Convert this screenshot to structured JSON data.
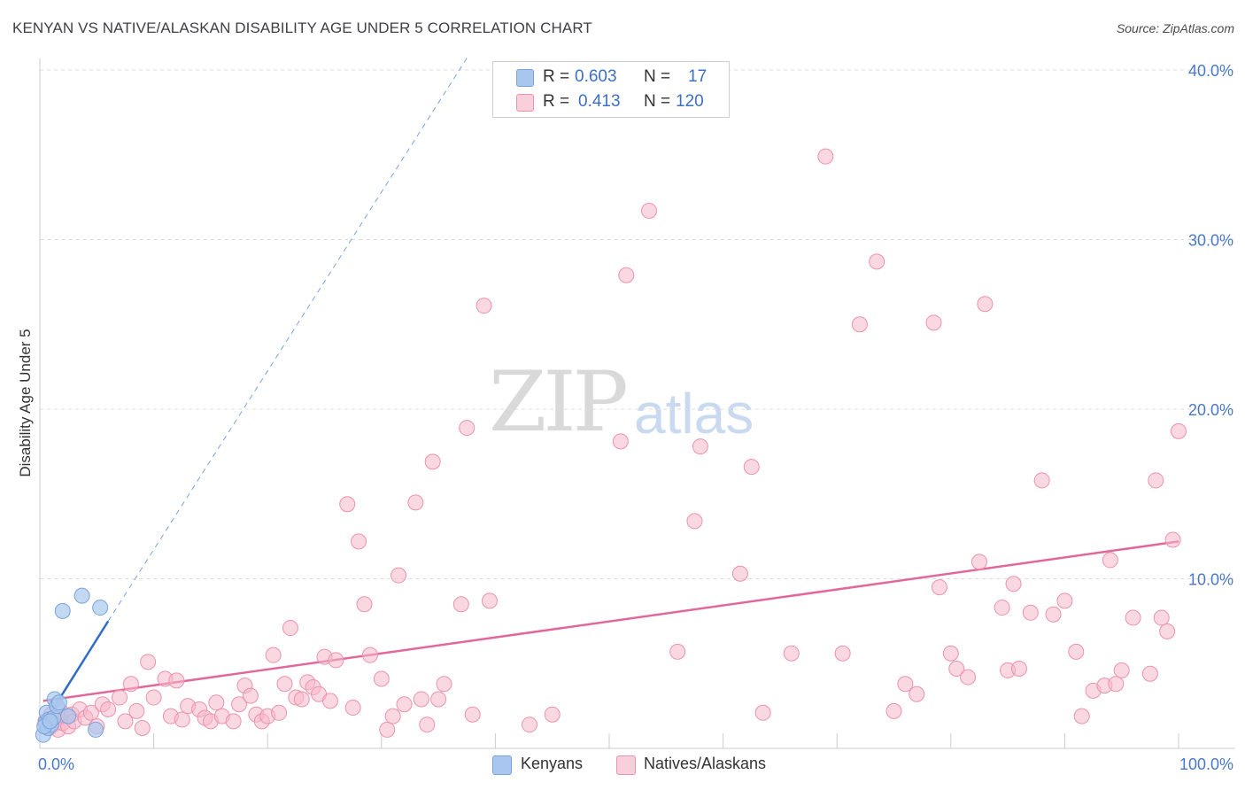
{
  "header": {
    "title": "KENYAN VS NATIVE/ALASKAN DISABILITY AGE UNDER 5 CORRELATION CHART",
    "source": "Source: ZipAtlas.com"
  },
  "watermark": {
    "zip": "ZIP",
    "atlas": "atlas"
  },
  "legend": {
    "rows": [
      {
        "r_label": "R =",
        "r_value": "0.603",
        "n_label": "N =",
        "n_value": "17",
        "color": "#a9c7ee"
      },
      {
        "r_label": "R =",
        "r_value": "0.413",
        "n_label": "N =",
        "n_value": "120",
        "color": "#f6b8cb"
      }
    ]
  },
  "bottom_legend": [
    {
      "label": "Kenyans",
      "color": "#a9c7ee"
    },
    {
      "label": "Natives/Alaskans",
      "color": "#f6b8cb"
    }
  ],
  "colors": {
    "blue_fill": "#a9c7ee",
    "blue_stroke": "#7aa3dc",
    "blue_line": "#2f6cc8",
    "pink_fill": "#f6b8cb",
    "pink_stroke": "#ec92ae",
    "pink_line": "#e2679a",
    "axis_text": "#4a78c9",
    "grid": "#dddddd"
  },
  "chart_data": {
    "type": "scatter",
    "title": "KENYAN VS NATIVE/ALASKAN DISABILITY AGE UNDER 5 CORRELATION CHART",
    "xlabel": "",
    "ylabel": "Disability Age Under 5",
    "xlim": [
      0,
      100
    ],
    "ylim": [
      0,
      42
    ],
    "x_tick_labels": [
      "0.0%",
      "100.0%"
    ],
    "y_ticks": [
      10,
      20,
      30,
      40
    ],
    "y_tick_labels": [
      "10.0%",
      "20.0%",
      "30.0%",
      "40.0%"
    ],
    "series": [
      {
        "name": "Kenyans",
        "r": 0.603,
        "n": 17,
        "points": [
          [
            0.3,
            0.8
          ],
          [
            0.5,
            1.5
          ],
          [
            0.6,
            2.1
          ],
          [
            0.7,
            1.2
          ],
          [
            0.8,
            1.7
          ],
          [
            1.0,
            1.4
          ],
          [
            1.2,
            1.8
          ],
          [
            1.3,
            2.9
          ],
          [
            1.5,
            2.5
          ],
          [
            1.7,
            2.7
          ],
          [
            2.0,
            8.1
          ],
          [
            2.5,
            1.9
          ],
          [
            3.7,
            9.0
          ],
          [
            4.9,
            1.1
          ],
          [
            5.3,
            8.3
          ],
          [
            0.4,
            1.3
          ],
          [
            0.9,
            1.6
          ]
        ],
        "trend": {
          "x": [
            0.3,
            6.0
          ],
          "y": [
            1.4,
            7.5
          ]
        },
        "trend_extension": {
          "x": [
            6.0,
            37.5
          ],
          "y": [
            7.5,
            40.7
          ]
        }
      },
      {
        "name": "Natives/Alaskans",
        "r": 0.413,
        "n": 120,
        "points": [
          [
            0.5,
            1.6
          ],
          [
            0.8,
            1.2
          ],
          [
            1.0,
            2.0
          ],
          [
            1.2,
            1.4
          ],
          [
            1.4,
            1.7
          ],
          [
            1.6,
            1.1
          ],
          [
            1.8,
            2.2
          ],
          [
            2.0,
            1.5
          ],
          [
            2.3,
            1.9
          ],
          [
            2.5,
            1.3
          ],
          [
            2.8,
            2.0
          ],
          [
            3.0,
            1.6
          ],
          [
            3.5,
            2.3
          ],
          [
            4.0,
            1.8
          ],
          [
            4.5,
            2.1
          ],
          [
            5.0,
            1.3
          ],
          [
            5.5,
            2.6
          ],
          [
            6.0,
            2.3
          ],
          [
            7.0,
            3.0
          ],
          [
            7.5,
            1.6
          ],
          [
            8.0,
            3.8
          ],
          [
            8.5,
            2.2
          ],
          [
            9.0,
            1.2
          ],
          [
            9.5,
            5.1
          ],
          [
            10.0,
            3.0
          ],
          [
            11.0,
            4.1
          ],
          [
            11.5,
            1.9
          ],
          [
            12.0,
            4.0
          ],
          [
            12.5,
            1.7
          ],
          [
            13.0,
            2.5
          ],
          [
            14.0,
            2.3
          ],
          [
            14.5,
            1.8
          ],
          [
            15.0,
            1.6
          ],
          [
            15.5,
            2.7
          ],
          [
            16.0,
            1.9
          ],
          [
            17.0,
            1.6
          ],
          [
            17.5,
            2.6
          ],
          [
            18.0,
            3.7
          ],
          [
            18.5,
            3.1
          ],
          [
            19.0,
            2.0
          ],
          [
            19.5,
            1.6
          ],
          [
            20.0,
            1.9
          ],
          [
            20.5,
            5.5
          ],
          [
            21.0,
            2.1
          ],
          [
            21.5,
            3.8
          ],
          [
            22.0,
            7.1
          ],
          [
            22.5,
            3.0
          ],
          [
            23.0,
            2.9
          ],
          [
            23.5,
            3.9
          ],
          [
            24.0,
            3.6
          ],
          [
            24.5,
            3.2
          ],
          [
            25.0,
            5.4
          ],
          [
            25.5,
            2.8
          ],
          [
            26.0,
            5.2
          ],
          [
            27.0,
            14.4
          ],
          [
            27.5,
            2.4
          ],
          [
            28.0,
            12.2
          ],
          [
            28.5,
            8.5
          ],
          [
            29.0,
            5.5
          ],
          [
            30.0,
            4.1
          ],
          [
            30.5,
            1.1
          ],
          [
            31.0,
            1.9
          ],
          [
            31.5,
            10.2
          ],
          [
            32.0,
            2.6
          ],
          [
            33.0,
            14.5
          ],
          [
            33.5,
            2.9
          ],
          [
            34.0,
            1.4
          ],
          [
            34.5,
            16.9
          ],
          [
            35.0,
            2.9
          ],
          [
            35.5,
            3.8
          ],
          [
            37.0,
            8.5
          ],
          [
            37.5,
            18.9
          ],
          [
            38.0,
            2.0
          ],
          [
            39.0,
            26.1
          ],
          [
            39.5,
            8.7
          ],
          [
            43.0,
            1.4
          ],
          [
            45.0,
            2.0
          ],
          [
            51.0,
            18.1
          ],
          [
            51.5,
            27.9
          ],
          [
            53.5,
            31.7
          ],
          [
            56.0,
            5.7
          ],
          [
            57.5,
            13.4
          ],
          [
            58.0,
            17.8
          ],
          [
            61.5,
            10.3
          ],
          [
            62.5,
            16.6
          ],
          [
            63.5,
            2.1
          ],
          [
            66.0,
            5.6
          ],
          [
            69.0,
            34.9
          ],
          [
            70.5,
            5.6
          ],
          [
            72.0,
            25.0
          ],
          [
            73.5,
            28.7
          ],
          [
            75.0,
            2.2
          ],
          [
            76.0,
            3.8
          ],
          [
            77.0,
            3.2
          ],
          [
            78.5,
            25.1
          ],
          [
            79.0,
            9.5
          ],
          [
            80.0,
            5.6
          ],
          [
            80.5,
            4.7
          ],
          [
            81.5,
            4.2
          ],
          [
            82.5,
            11.0
          ],
          [
            83.0,
            26.2
          ],
          [
            84.5,
            8.3
          ],
          [
            85.0,
            4.6
          ],
          [
            85.5,
            9.7
          ],
          [
            86.0,
            4.7
          ],
          [
            87.0,
            8.0
          ],
          [
            88.0,
            15.8
          ],
          [
            89.0,
            7.9
          ],
          [
            90.0,
            8.7
          ],
          [
            91.0,
            5.7
          ],
          [
            91.5,
            1.9
          ],
          [
            92.5,
            3.4
          ],
          [
            93.5,
            3.7
          ],
          [
            94.0,
            11.1
          ],
          [
            94.5,
            3.8
          ],
          [
            95.0,
            4.6
          ],
          [
            96.0,
            7.7
          ],
          [
            97.5,
            4.4
          ],
          [
            98.0,
            15.8
          ],
          [
            98.5,
            7.7
          ],
          [
            99.0,
            6.9
          ],
          [
            99.5,
            12.3
          ]
        ],
        "trend": {
          "x": [
            0.3,
            100.0
          ],
          "y": [
            2.8,
            12.2
          ]
        }
      }
    ],
    "y_label_extra": [
      {
        "x": 100.0,
        "y": 18.7
      }
    ]
  }
}
